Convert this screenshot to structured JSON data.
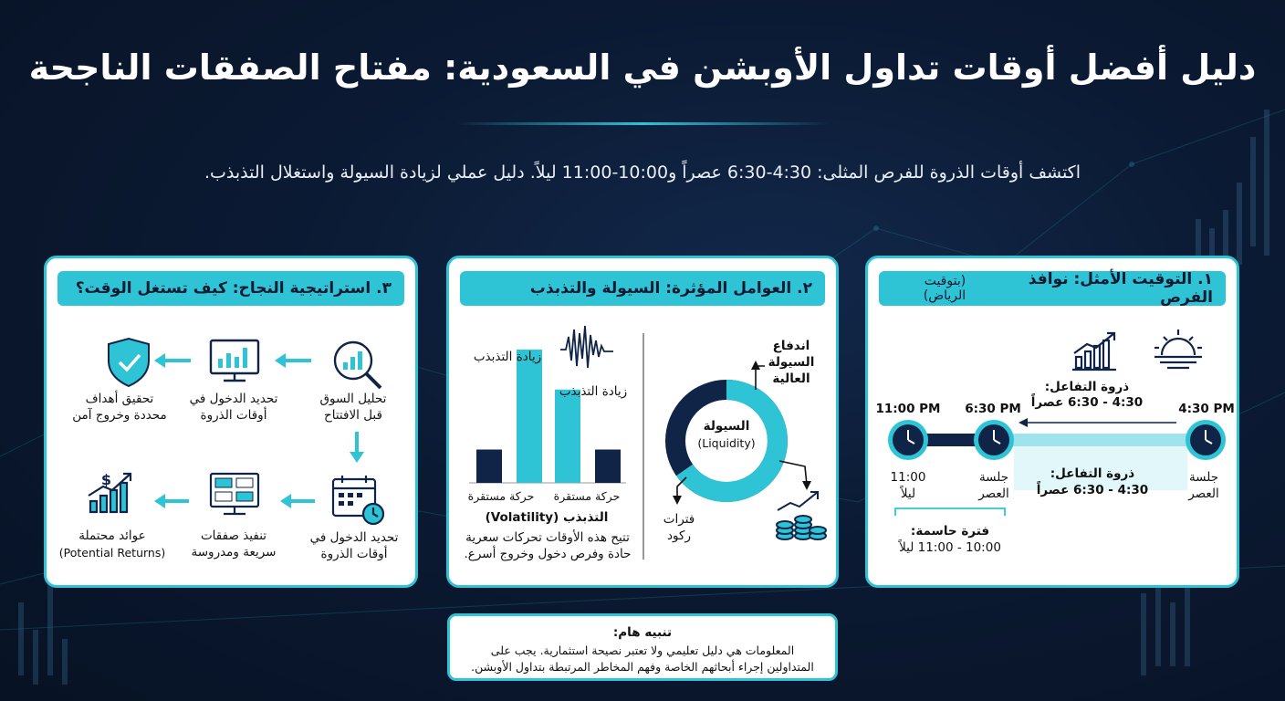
{
  "title": "دليل أفضل أوقات تداول الأوبشن في السعودية: مفتاح الصفقات الناجحة",
  "subtitle": "اكتشف أوقات الذروة للفرص المثلى: 4:30-6:30 عصراً و10:00-11:00 ليلاً. دليل عملي لزيادة السيولة واستغلال التذبذب.",
  "panel1": {
    "header": "١. التوقيت الأمثل: نوافذ الفرص",
    "header_note": "(بتوقيت الرياض)",
    "peak_top_label": "ذروة التفاعل:",
    "peak_top_time": "4:30 - 6:30 عصراً",
    "times": [
      "4:30 PM",
      "6:30 PM",
      "11:00 PM"
    ],
    "session_start": [
      "جلسة",
      "العصر"
    ],
    "session_mid": [
      "جلسة",
      "العصر"
    ],
    "session_end": [
      "11:00",
      "ليلاً"
    ],
    "peak_bottom_label": "ذروة التفاعل:",
    "peak_bottom_time": "4:30 - 6:30 عصراً",
    "critical_label": "فترة حاسمة:",
    "critical_time": "10:00 - 11:00 ليلاً"
  },
  "panel2": {
    "header": "٢. العوامل المؤثرة: السيولة والتذبذب",
    "liquidity_title": "السيولة",
    "liquidity_en": "(Liquidity)",
    "high_liquidity": [
      "اندفاع",
      "السيولة",
      "العالية"
    ],
    "stagnation": [
      "فترات",
      "ركود"
    ],
    "volatility_increase_top": "زيادة التذبذب",
    "volatility_increase_wave": "زيادة التذبذب",
    "stable_move_left": "حركة مستقرة",
    "stable_move_right": "حركة مستقرة",
    "volatility_title": "التذبذب (Volatility)",
    "volatility_desc": [
      "تتيح هذه الأوقات تحركات سعرية",
      "حادة وفرص دخول وخروج أسرع."
    ],
    "bar_values": [
      1,
      4,
      2.8,
      1
    ]
  },
  "panel3": {
    "header": "٣. استراتيجية النجاح: كيف تستغل الوقت؟",
    "step_analyze": [
      "تحليل السوق",
      "قبل الافتتاح"
    ],
    "step_entry": [
      "تحديد الدخول في",
      "أوقات الذروة"
    ],
    "step_goals": [
      "تحقيق أهداف",
      "محددة وخروج آمن"
    ],
    "step_entry2": [
      "تحديد الدخول في",
      "أوقات الذروة"
    ],
    "step_execute": [
      "تنفيذ صفقات",
      "سريعة ومدروسة"
    ],
    "step_returns": [
      "عوائد محتملة",
      "(Potential Returns)"
    ],
    "screen_labels": [
      "BUY",
      "SELL",
      "BUY",
      "SELL"
    ]
  },
  "note": {
    "title": "تنبيه هام:",
    "line1": "المعلومات هي دليل تعليمي ولا تعتبر نصيحة استثمارية. يجب على",
    "line2": "المتداولين إجراء أبحاثهم الخاصة وفهم المخاطر المرتبطة بتداول الأوبشن."
  },
  "colors": {
    "accent": "#2ec4d6",
    "navy": "#0f2447",
    "bg": "#0b1a33"
  }
}
